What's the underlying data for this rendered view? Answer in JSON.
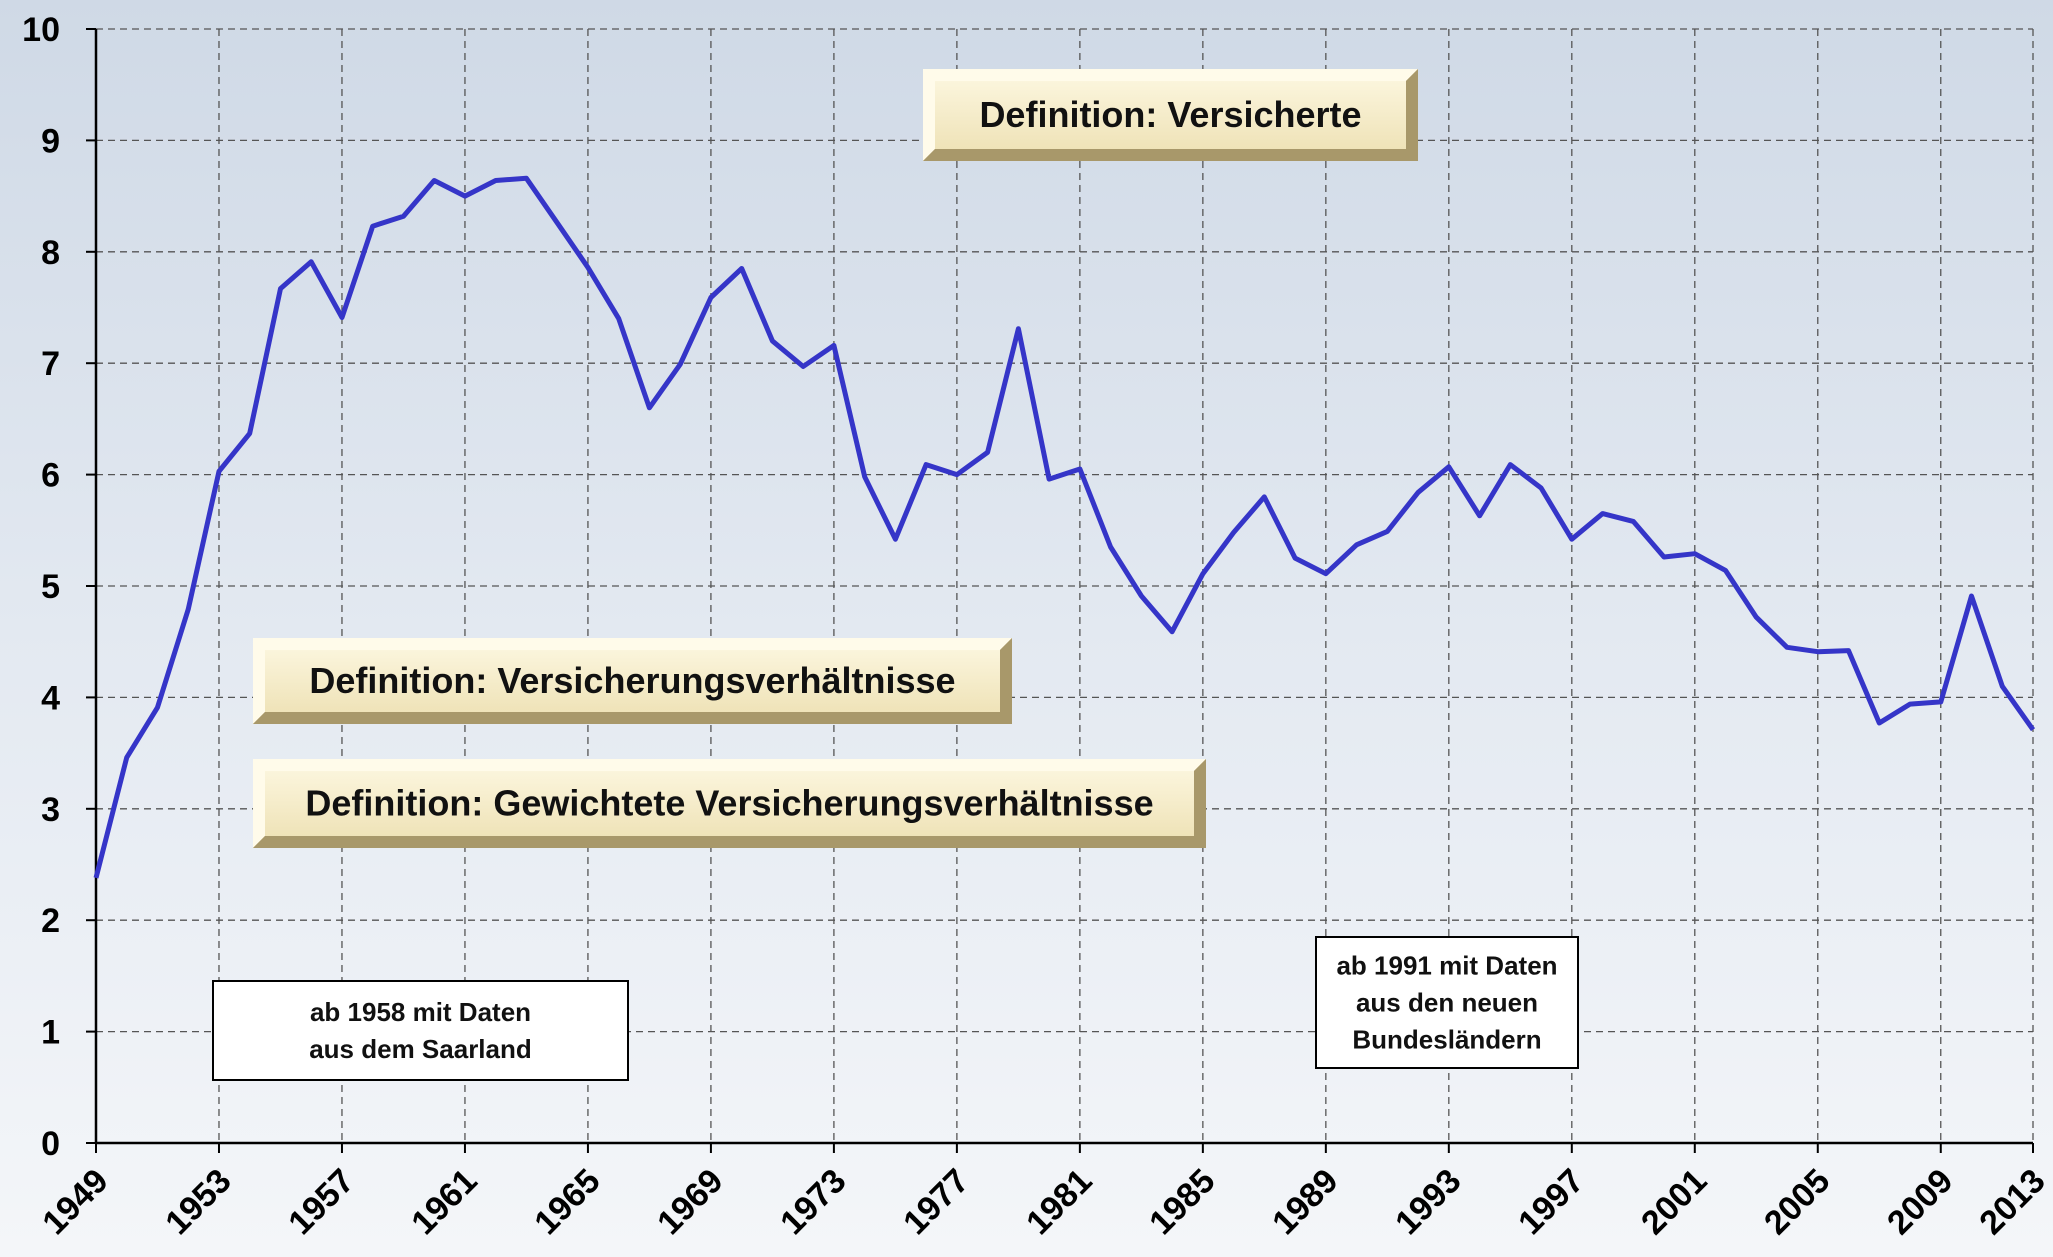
{
  "chart_data": {
    "type": "line",
    "categories": [
      "1949",
      null,
      null,
      null,
      "1953",
      null,
      null,
      null,
      "1957",
      null,
      null,
      null,
      "1961",
      null,
      null,
      null,
      "1965",
      null,
      null,
      null,
      "1969",
      null,
      null,
      null,
      "1973",
      null,
      null,
      null,
      "1977",
      null,
      null,
      null,
      "1981",
      null,
      null,
      null,
      "1985",
      null,
      null,
      null,
      "1989",
      null,
      null,
      null,
      "1993",
      null,
      null,
      null,
      "1997",
      null,
      null,
      null,
      "2001",
      null,
      null,
      null,
      "2005",
      null,
      null,
      null,
      "2009",
      null,
      null,
      "2013"
    ],
    "series": [
      {
        "color": "#3535c8",
        "values": [
          2.38,
          3.46,
          3.91,
          4.79,
          6.03,
          6.37,
          7.67,
          7.91,
          7.41,
          8.23,
          8.32,
          8.64,
          8.5,
          8.64,
          8.66,
          8.26,
          7.86,
          7.4,
          6.6,
          6.99,
          7.59,
          7.85,
          7.2,
          6.97,
          7.16,
          5.98,
          5.42,
          6.09,
          6.0,
          6.2,
          7.31,
          5.96,
          6.05,
          5.35,
          4.91,
          4.59,
          5.11,
          5.48,
          5.8,
          5.25,
          5.11,
          5.37,
          5.49,
          5.84,
          6.07,
          5.63,
          6.09,
          5.88,
          5.42,
          5.65,
          5.58,
          5.26,
          5.29,
          5.14,
          4.72,
          4.45,
          4.41,
          4.42,
          3.77,
          3.94,
          3.96,
          4.91,
          4.1,
          3.71
        ]
      }
    ],
    "ylim": [
      0,
      10
    ],
    "yticks": [
      0,
      1,
      2,
      3,
      4,
      5,
      6,
      7,
      8,
      9,
      10
    ],
    "grid": true,
    "buttons": [
      "Definition: Versicherte",
      "Definition: Versicherungsverhältnisse",
      "Definition: Gewichtete Versicherungsverhältnisse"
    ],
    "annotations": [
      {
        "lines": [
          "ab 1958 mit Daten",
          "aus dem Saarland"
        ]
      },
      {
        "lines": [
          "ab 1991 mit Daten",
          "aus den neuen",
          "Bundesländern"
        ]
      }
    ]
  }
}
